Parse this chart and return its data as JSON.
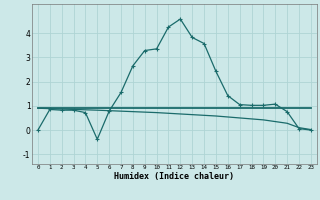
{
  "xlabel": "Humidex (Indice chaleur)",
  "background_color": "#cce8e8",
  "grid_color": "#afd4d4",
  "line_color": "#1a6b6b",
  "xlim": [
    -0.5,
    23.5
  ],
  "ylim": [
    -1.4,
    5.2
  ],
  "xticks": [
    0,
    1,
    2,
    3,
    4,
    5,
    6,
    7,
    8,
    9,
    10,
    11,
    12,
    13,
    14,
    15,
    16,
    17,
    18,
    19,
    20,
    21,
    22,
    23
  ],
  "yticks": [
    -1,
    0,
    1,
    2,
    3,
    4
  ],
  "line1_x": [
    0,
    1,
    2,
    3,
    4,
    5,
    6,
    7,
    8,
    9,
    10,
    11,
    12,
    13,
    14,
    15,
    16,
    17,
    18,
    19,
    20,
    21,
    22,
    23
  ],
  "line1_y": [
    0.0,
    0.85,
    0.82,
    0.82,
    0.72,
    -0.38,
    0.78,
    1.55,
    2.65,
    3.28,
    3.35,
    4.25,
    4.58,
    3.82,
    3.57,
    2.42,
    1.42,
    1.05,
    1.02,
    1.02,
    1.07,
    0.76,
    0.06,
    0.0
  ],
  "line2_x": [
    0,
    23
  ],
  "line2_y": [
    0.9,
    0.9
  ],
  "line3_x": [
    0,
    5,
    10,
    15,
    17,
    19,
    20,
    21,
    22,
    23
  ],
  "line3_y": [
    0.9,
    0.82,
    0.72,
    0.58,
    0.5,
    0.42,
    0.35,
    0.28,
    0.1,
    0.02
  ]
}
